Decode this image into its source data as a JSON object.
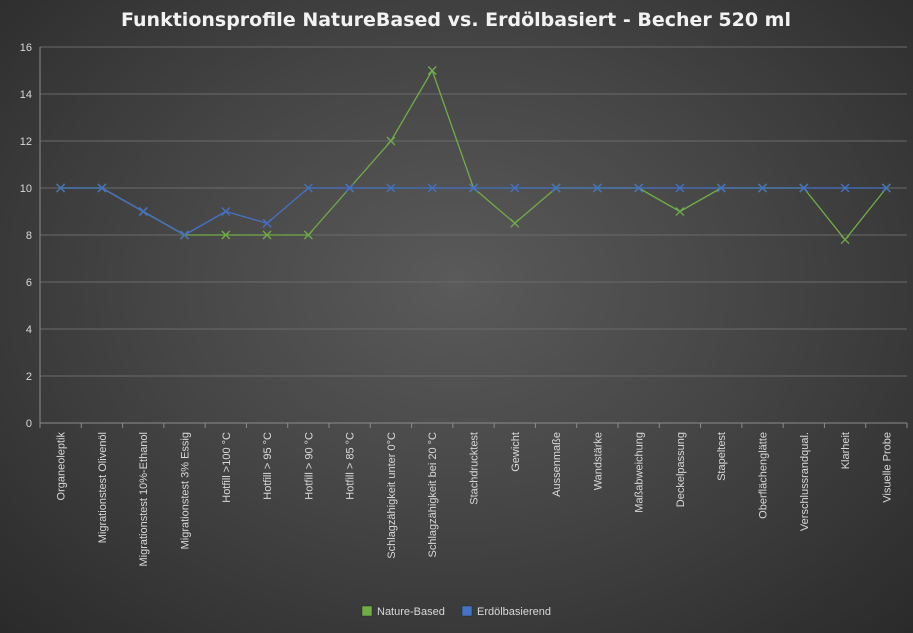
{
  "chart_data": {
    "type": "line",
    "title": "Funktionsprofile  NatureBased  vs.  Erdölbasiert  - Becher 520 ml",
    "xlabel": "",
    "ylabel": "",
    "ylim": [
      0,
      16
    ],
    "yticks": [
      0,
      2,
      4,
      6,
      8,
      10,
      12,
      14,
      16
    ],
    "grid": true,
    "legend_position": "bottom",
    "categories": [
      "Organeoleptik",
      "Migrationstest Olivenöl",
      "Migrationstest 10%-Ethanol",
      "Migrationstest 3% Essig",
      "Hotfill >100 °C",
      "Hotfill > 95 °C",
      "Hotfill > 90 °C",
      "Hotfill > 85 °C",
      "Schlagzähigkeit unter 0°C",
      "Schlagzähigkeit bei 20 °C",
      "Stachdrucktest",
      "Gewicht",
      "Aussenmaße",
      "Wandstärke",
      "Maßabweichung",
      "Deckelpassung",
      "Stapeltest",
      "Oberflächenglätte",
      "Verschlussrandqual.",
      "Klarheit",
      "Visuelle Probe"
    ],
    "series": [
      {
        "name": "Nature-Based",
        "color": "#70ad47",
        "values": [
          10,
          10,
          9,
          8,
          8,
          8,
          8,
          10,
          12,
          15,
          10,
          8.5,
          10,
          10,
          10,
          9,
          10,
          10,
          10,
          7.8,
          10
        ]
      },
      {
        "name": "Erdölbasierend",
        "color": "#4472c4",
        "values": [
          10,
          10,
          9,
          8,
          9,
          8.5,
          10,
          10,
          10,
          10,
          10,
          10,
          10,
          10,
          10,
          10,
          10,
          10,
          10,
          10,
          10
        ]
      }
    ]
  }
}
